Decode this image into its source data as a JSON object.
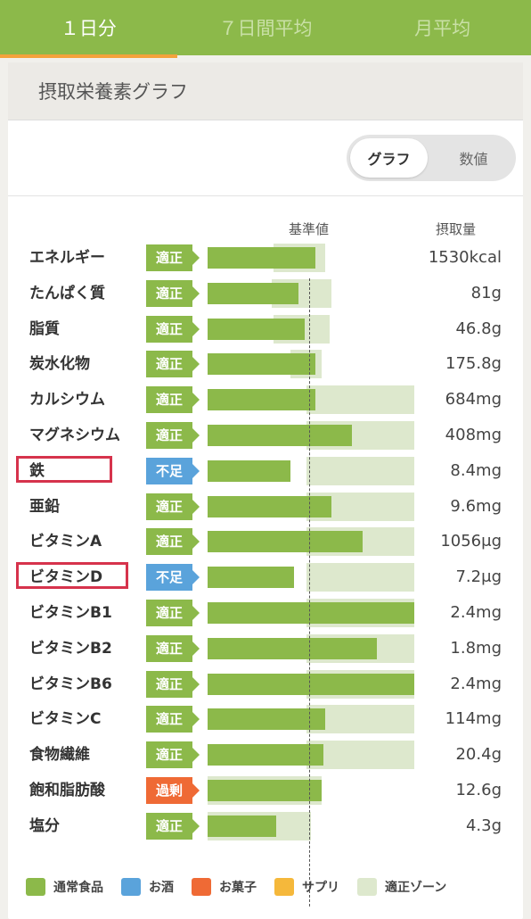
{
  "tabs": [
    "１日分",
    "７日間平均",
    "月平均"
  ],
  "active_tab": 0,
  "panel_title": "摂取栄養素グラフ",
  "toggle": {
    "graph": "グラフ",
    "number": "数値"
  },
  "columns": {
    "standard": "基準値",
    "intake": "摂取量"
  },
  "status_colors": {
    "適正": "#8cb94a",
    "不足": "#5aa3db",
    "過剰": "#ef6a35"
  },
  "nutrients": [
    {
      "name": "エネルギー",
      "status": "適正",
      "value": "1530kcal",
      "fill": 0.52,
      "zone": [
        0.32,
        0.57
      ],
      "highlight": false
    },
    {
      "name": "たんぱく質",
      "status": "適正",
      "value": "81g",
      "fill": 0.44,
      "zone": [
        0.31,
        0.6
      ],
      "highlight": false
    },
    {
      "name": "脂質",
      "status": "適正",
      "value": "46.8g",
      "fill": 0.47,
      "zone": [
        0.32,
        0.59
      ],
      "highlight": false
    },
    {
      "name": "炭水化物",
      "status": "適正",
      "value": "175.8g",
      "fill": 0.52,
      "zone": [
        0.4,
        0.55
      ],
      "highlight": false
    },
    {
      "name": "カルシウム",
      "status": "適正",
      "value": "684mg",
      "fill": 0.52,
      "zone": [
        0.48,
        1.0
      ],
      "highlight": false
    },
    {
      "name": "マグネシウム",
      "status": "適正",
      "value": "408mg",
      "fill": 0.7,
      "zone": [
        0.48,
        1.0
      ],
      "highlight": false
    },
    {
      "name": "鉄",
      "status": "不足",
      "value": "8.4mg",
      "fill": 0.4,
      "zone": [
        0.48,
        1.0
      ],
      "highlight": true
    },
    {
      "name": "亜鉛",
      "status": "適正",
      "value": "9.6mg",
      "fill": 0.6,
      "zone": [
        0.48,
        1.0
      ],
      "highlight": false
    },
    {
      "name": "ビタミンA",
      "status": "適正",
      "value": "1056μg",
      "fill": 0.75,
      "zone": [
        0.48,
        1.0
      ],
      "highlight": false
    },
    {
      "name": "ビタミンD",
      "status": "不足",
      "value": "7.2μg",
      "fill": 0.42,
      "zone": [
        0.48,
        1.0
      ],
      "highlight": true
    },
    {
      "name": "ビタミンB1",
      "status": "適正",
      "value": "2.4mg",
      "fill": 1.0,
      "zone": [
        0.48,
        1.0
      ],
      "highlight": false
    },
    {
      "name": "ビタミンB2",
      "status": "適正",
      "value": "1.8mg",
      "fill": 0.82,
      "zone": [
        0.48,
        1.0
      ],
      "highlight": false
    },
    {
      "name": "ビタミンB6",
      "status": "適正",
      "value": "2.4mg",
      "fill": 1.0,
      "zone": [
        0.48,
        1.0
      ],
      "highlight": false
    },
    {
      "name": "ビタミンC",
      "status": "適正",
      "value": "114mg",
      "fill": 0.57,
      "zone": [
        0.48,
        1.0
      ],
      "highlight": false
    },
    {
      "name": "食物繊維",
      "status": "適正",
      "value": "20.4g",
      "fill": 0.56,
      "zone": [
        0.48,
        1.0
      ],
      "highlight": false
    },
    {
      "name": "飽和脂肪酸",
      "status": "過剰",
      "value": "12.6g",
      "fill": 0.55,
      "zone": [
        0.0,
        0.55
      ],
      "highlight": false
    },
    {
      "name": "塩分",
      "status": "適正",
      "value": "4.3g",
      "fill": 0.33,
      "zone": [
        0.0,
        0.5
      ],
      "highlight": false
    }
  ],
  "legend": [
    {
      "label": "通常食品",
      "color": "#8cb94a"
    },
    {
      "label": "お酒",
      "color": "#5aa3db"
    },
    {
      "label": "お菓子",
      "color": "#ef6a35"
    },
    {
      "label": "サプリ",
      "color": "#f5b83b"
    },
    {
      "label": "適正ゾーン",
      "color": "#dde8cd"
    }
  ]
}
